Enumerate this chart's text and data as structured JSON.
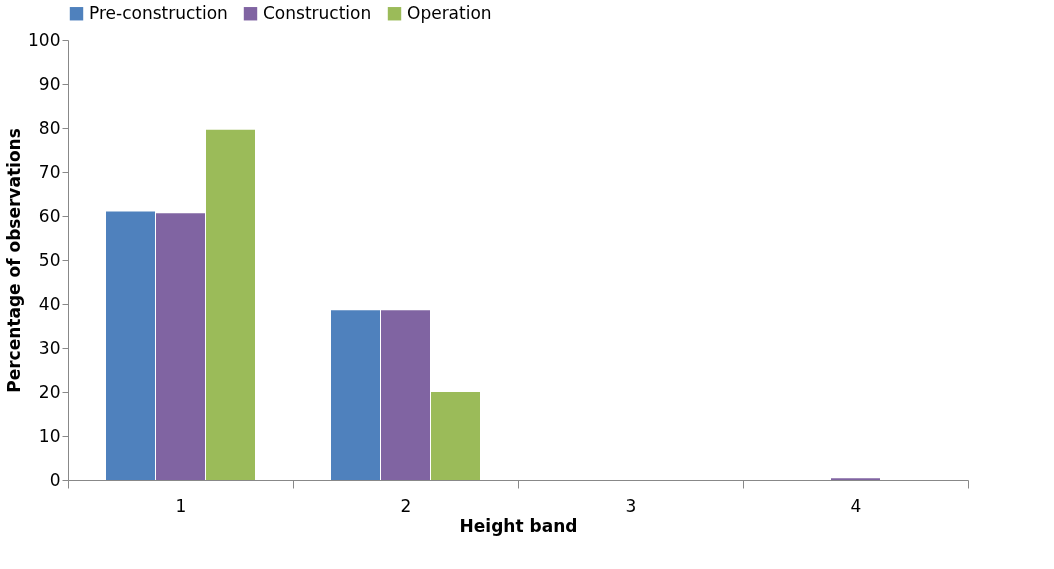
{
  "chart_data": {
    "type": "bar",
    "xlabel": "Height band",
    "ylabel": "Percentage of observations",
    "categories": [
      "1",
      "2",
      "3",
      "4"
    ],
    "series": [
      {
        "name": "Pre-construction",
        "color": "#4f81bd",
        "values": [
          61.0,
          38.6,
          0,
          0
        ]
      },
      {
        "name": "Construction",
        "color": "#8064a2",
        "values": [
          60.6,
          38.6,
          0,
          0.4
        ]
      },
      {
        "name": "Operation",
        "color": "#9bbb59",
        "values": [
          79.6,
          20.0,
          0,
          0
        ]
      }
    ],
    "ylim": [
      0,
      100
    ],
    "yticks": [
      0,
      10,
      20,
      30,
      40,
      50,
      60,
      70,
      80,
      90,
      100
    ],
    "grid": false,
    "legend": "top"
  }
}
